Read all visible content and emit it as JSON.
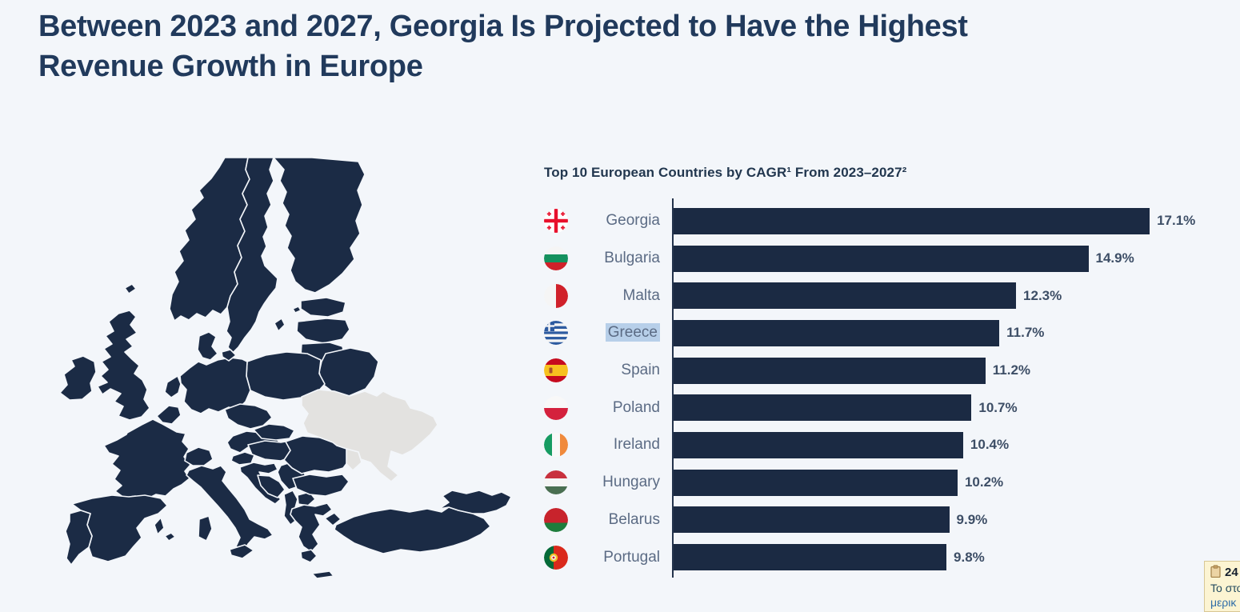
{
  "page": {
    "background_color": "#f3f6fa"
  },
  "title": {
    "text": "Between 2023 and 2027, Georgia Is Projected to Have the Highest Revenue Growth in Europe",
    "line1": "Between 2023 and 2027, Georgia Is Projected to Have the Highest",
    "line2": "Revenue Growth in Europe",
    "color": "#213a5c"
  },
  "map": {
    "name": "europe-map",
    "land_color": "#1b2b45",
    "excluded_color": "#e3e2e0",
    "border_color": "#f3f6fa",
    "excluded_regions": [
      "Ukraine",
      "Moldova",
      "Kaliningrad"
    ]
  },
  "chart_data": {
    "type": "bar",
    "orientation": "horizontal",
    "title": "Top 10 European Countries by CAGR¹ From 2023–2027²",
    "categories": [
      "Georgia",
      "Bulgaria",
      "Malta",
      "Greece",
      "Spain",
      "Poland",
      "Ireland",
      "Hungary",
      "Belarus",
      "Portugal"
    ],
    "values": [
      17.1,
      14.9,
      12.3,
      11.7,
      11.2,
      10.7,
      10.4,
      10.2,
      9.9,
      9.8
    ],
    "value_labels": [
      "17.1%",
      "14.9%",
      "12.3%",
      "11.7%",
      "11.2%",
      "10.7%",
      "10.4%",
      "10.2%",
      "9.9%",
      "9.8%"
    ],
    "flags": [
      "georgia",
      "bulgaria",
      "malta",
      "greece",
      "spain",
      "poland",
      "ireland",
      "hungary",
      "belarus",
      "portugal"
    ],
    "highlighted_category": "Greece",
    "highlight_color": "#b7cfe9",
    "bar_color": "#1b2a43",
    "label_color": "#5b6b84",
    "value_color": "#3d4e66",
    "axis_color": "#23334c",
    "xlim": [
      0,
      17.5
    ],
    "grid": false,
    "legend": "none"
  },
  "note_popup": {
    "count": "24",
    "icon": "clipboard-icon",
    "line1": "Το στο",
    "line2": "μερικ",
    "background": "#fcf4d2",
    "border_color": "#d8c795"
  }
}
